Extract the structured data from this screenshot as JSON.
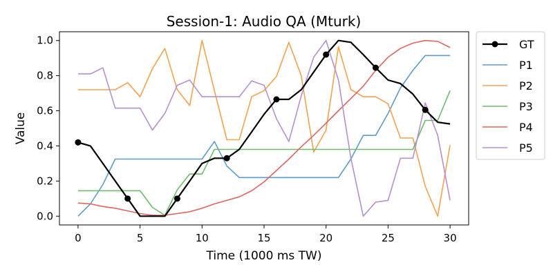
{
  "chart_data": {
    "type": "line",
    "title": "Session-1: Audio QA (Mturk)",
    "xlabel": "Time (1000 ms TW)",
    "ylabel": "Value",
    "xlim": [
      -1.5,
      31.5
    ],
    "ylim": [
      -0.05,
      1.05
    ],
    "xticks": [
      0,
      5,
      10,
      15,
      20,
      25,
      30
    ],
    "yticks": [
      0.0,
      0.2,
      0.4,
      0.6,
      0.8,
      1.0
    ],
    "xtick_labels": [
      "0",
      "5",
      "10",
      "15",
      "20",
      "25",
      "30"
    ],
    "ytick_labels": [
      "0.0",
      "0.2",
      "0.4",
      "0.6",
      "0.8",
      "1.0"
    ],
    "grid": false,
    "legend_position": "outside-right",
    "x": [
      0,
      1,
      2,
      3,
      4,
      5,
      6,
      7,
      8,
      9,
      10,
      11,
      12,
      13,
      14,
      15,
      16,
      17,
      18,
      19,
      20,
      21,
      22,
      23,
      24,
      25,
      26,
      27,
      28,
      29,
      30
    ],
    "series": [
      {
        "name": "GT",
        "color": "#000000",
        "marker_every": 4,
        "values": [
          0.42,
          0.4,
          0.3,
          0.2,
          0.1,
          0.0,
          0.0,
          0.0,
          0.1,
          0.2,
          0.3,
          0.33,
          0.33,
          0.38,
          0.48,
          0.58,
          0.665,
          0.665,
          0.72,
          0.82,
          0.92,
          1.0,
          0.99,
          0.92,
          0.845,
          0.775,
          0.755,
          0.695,
          0.605,
          0.535,
          0.525
        ]
      },
      {
        "name": "P1",
        "color": "#5b9bc9",
        "values": [
          0.0,
          0.07,
          0.18,
          0.325,
          0.325,
          0.325,
          0.325,
          0.325,
          0.325,
          0.325,
          0.325,
          0.425,
          0.285,
          0.22,
          0.22,
          0.22,
          0.22,
          0.22,
          0.22,
          0.22,
          0.22,
          0.22,
          0.325,
          0.46,
          0.46,
          0.585,
          0.73,
          0.83,
          0.915,
          0.915,
          0.915
        ]
      },
      {
        "name": "P2",
        "color": "#f5a04b",
        "values": [
          0.72,
          0.72,
          0.72,
          0.72,
          0.76,
          0.68,
          0.84,
          0.955,
          0.72,
          0.63,
          1.0,
          0.715,
          0.435,
          0.435,
          0.68,
          0.715,
          0.795,
          0.99,
          0.8,
          0.365,
          0.49,
          0.965,
          0.72,
          0.68,
          0.68,
          0.64,
          0.445,
          0.445,
          0.17,
          0.0,
          0.405
        ]
      },
      {
        "name": "P3",
        "color": "#6cbb6c",
        "values": [
          0.145,
          0.145,
          0.145,
          0.145,
          0.145,
          0.145,
          0.05,
          0.005,
          0.15,
          0.24,
          0.24,
          0.38,
          0.38,
          0.38,
          0.38,
          0.38,
          0.38,
          0.38,
          0.38,
          0.38,
          0.38,
          0.38,
          0.38,
          0.38,
          0.38,
          0.38,
          0.38,
          0.38,
          0.545,
          0.545,
          0.715
        ]
      },
      {
        "name": "P4",
        "color": "#e0635d",
        "values": [
          0.075,
          0.07,
          0.055,
          0.045,
          0.03,
          0.015,
          0.005,
          0.005,
          0.015,
          0.025,
          0.045,
          0.07,
          0.09,
          0.11,
          0.145,
          0.195,
          0.26,
          0.325,
          0.395,
          0.46,
          0.53,
          0.6,
          0.67,
          0.74,
          0.83,
          0.905,
          0.955,
          0.985,
          1.0,
          0.995,
          0.96
        ]
      },
      {
        "name": "P5",
        "color": "#b58fd0",
        "values": [
          0.81,
          0.81,
          0.845,
          0.615,
          0.615,
          0.615,
          0.49,
          0.585,
          0.745,
          0.775,
          0.68,
          0.68,
          0.68,
          0.68,
          0.77,
          0.745,
          0.555,
          0.425,
          0.685,
          0.905,
          1.0,
          0.775,
          0.33,
          0.0,
          0.08,
          0.09,
          0.33,
          0.33,
          0.645,
          0.46,
          0.09
        ]
      }
    ]
  }
}
